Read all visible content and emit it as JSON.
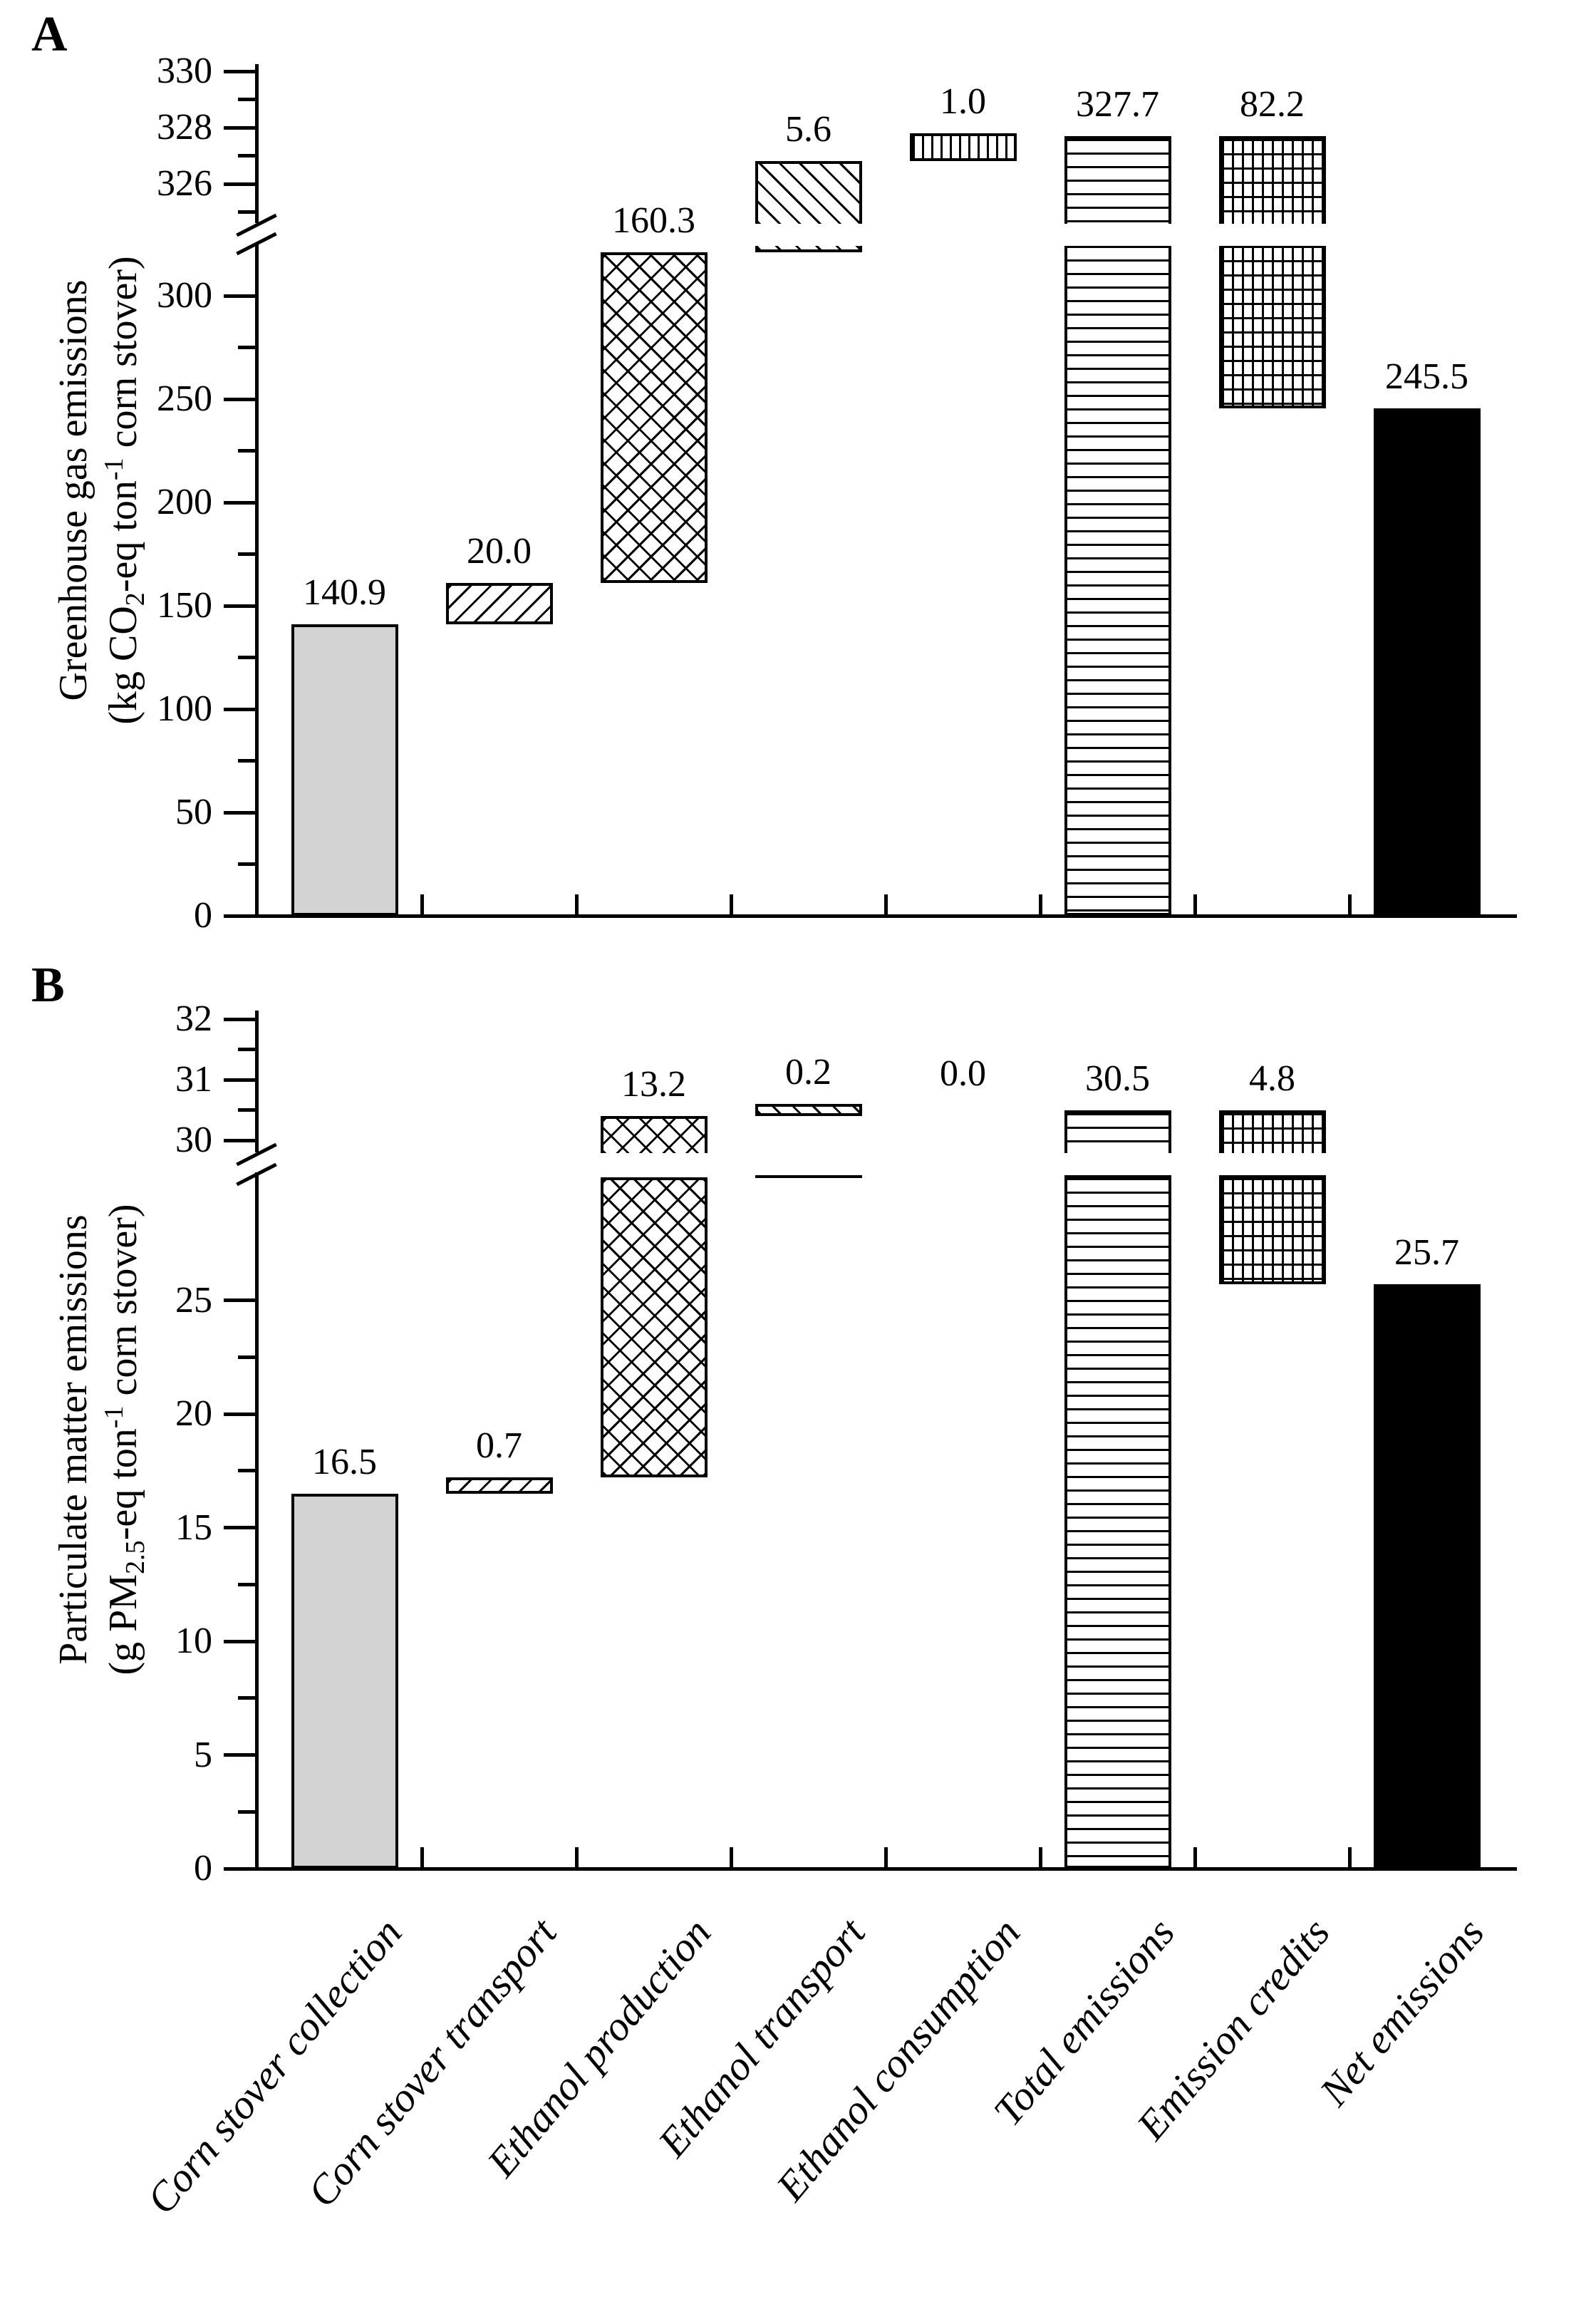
{
  "figure": {
    "background": "#ffffff",
    "ink_color": "#000000",
    "bar_gray": "#d3d3d3",
    "panel_letters": [
      "A",
      "B"
    ]
  },
  "chart_data": [
    {
      "type": "bar",
      "subtype": "waterfall-with-axis-break",
      "panel_label": "A",
      "ylabel_line1": "Greenhouse gas emissions",
      "ylabel_line2_parts": [
        {
          "text": "(kg CO"
        },
        {
          "text": "2",
          "style": "sub"
        },
        {
          "text": "-eq ton"
        },
        {
          "text": "-1",
          "style": "sup"
        },
        {
          "text": " corn stover)"
        }
      ],
      "categories": [
        "Corn stover collection",
        "Corn stover transport",
        "Ethanol production",
        "Ethanol transport",
        "Ethanol consumption",
        "Total emissions",
        "Emission credits",
        "Net emissions"
      ],
      "values": [
        140.9,
        20.0,
        160.3,
        5.6,
        1.0,
        327.7,
        82.2,
        245.5
      ],
      "value_labels": [
        "140.9",
        "20.0",
        "160.3",
        "5.6",
        "1.0",
        "327.7",
        "82.2",
        "245.5"
      ],
      "bar_roles": [
        "increment",
        "increment",
        "increment",
        "increment",
        "increment",
        "total",
        "credit",
        "net"
      ],
      "patterns": [
        "solid-gray",
        "diag-up",
        "cross",
        "diag-down",
        "vlines",
        "hlines",
        "grid",
        "solid-black"
      ],
      "axis": {
        "lower_major_ticks": [
          0,
          50,
          100,
          150,
          200,
          250,
          300
        ],
        "lower_minor_ticks": [
          25,
          75,
          125,
          175,
          225,
          275
        ],
        "upper_major_ticks": [
          326,
          328,
          330
        ],
        "upper_minor_ticks": [
          325,
          327,
          329
        ],
        "lower_tick_labels": [
          "0",
          "50",
          "100",
          "150",
          "200",
          "250",
          "300"
        ],
        "upper_tick_labels": [
          "326",
          "328",
          "330"
        ],
        "has_break": true,
        "ylim_lower": [
          0,
          300
        ],
        "ylim_upper": [
          326,
          330
        ],
        "grid": false
      }
    },
    {
      "type": "bar",
      "subtype": "waterfall-with-axis-break",
      "panel_label": "B",
      "ylabel_line1": "Particulate matter emissions",
      "ylabel_line2_parts": [
        {
          "text": "(g PM"
        },
        {
          "text": "2.5",
          "style": "sub"
        },
        {
          "text": "-eq ton"
        },
        {
          "text": "-1",
          "style": "sup"
        },
        {
          "text": " corn stover)"
        }
      ],
      "categories": [
        "Corn stover collection",
        "Corn stover transport",
        "Ethanol production",
        "Ethanol transport",
        "Ethanol consumption",
        "Total emissions",
        "Emission credits",
        "Net emissions"
      ],
      "values": [
        16.5,
        0.7,
        13.2,
        0.2,
        0.0,
        30.5,
        4.8,
        25.7
      ],
      "value_labels": [
        "16.5",
        "0.7",
        "13.2",
        "0.2",
        "0.0",
        "30.5",
        "4.8",
        "25.7"
      ],
      "bar_roles": [
        "increment",
        "increment",
        "increment",
        "increment",
        "increment",
        "total",
        "credit",
        "net"
      ],
      "patterns": [
        "solid-gray",
        "diag-up",
        "cross",
        "diag-down",
        "vlines",
        "hlines",
        "grid",
        "solid-black"
      ],
      "axis": {
        "lower_major_ticks": [
          0,
          5,
          10,
          15,
          20,
          25
        ],
        "lower_minor_ticks": [
          2.5,
          7.5,
          12.5,
          17.5,
          22.5
        ],
        "upper_major_ticks": [
          30,
          31,
          32
        ],
        "upper_minor_ticks": [
          30.5,
          31.5
        ],
        "lower_tick_labels": [
          "0",
          "5",
          "10",
          "15",
          "20",
          "25"
        ],
        "upper_tick_labels": [
          "30",
          "31",
          "32"
        ],
        "has_break": true,
        "ylim_lower": [
          0,
          25
        ],
        "ylim_upper": [
          30,
          32
        ],
        "grid": false
      }
    }
  ]
}
